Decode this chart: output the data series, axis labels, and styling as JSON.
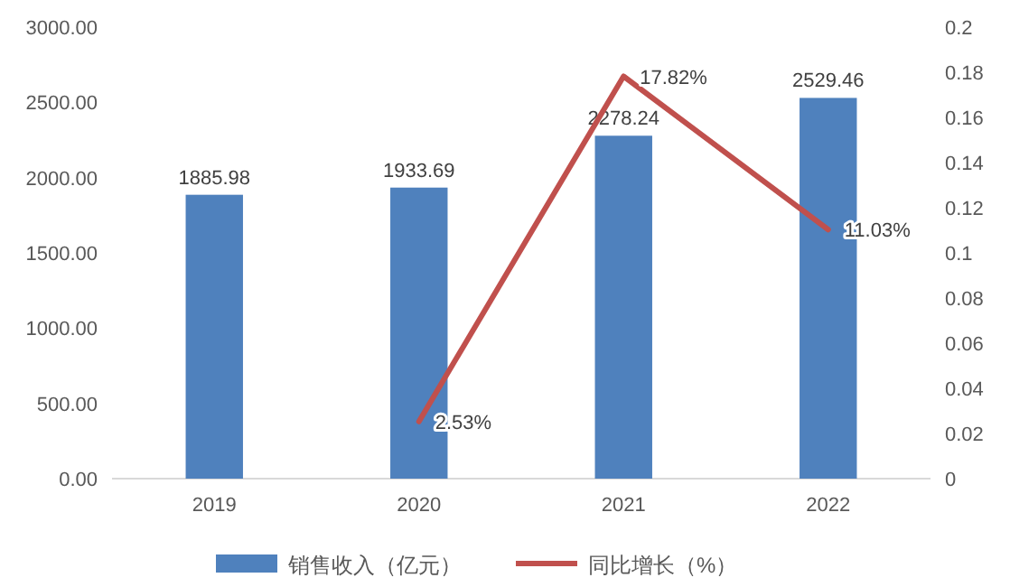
{
  "chart_data": {
    "type": "bar",
    "categories": [
      "2019",
      "2020",
      "2021",
      "2022"
    ],
    "series": [
      {
        "name": "销售收入（亿元）",
        "color": "#4f81bd",
        "values": [
          1885.98,
          1933.69,
          2278.24,
          2529.46
        ],
        "value_labels": [
          "1885.98",
          "1933.69",
          "2278.24",
          "2529.46"
        ]
      },
      {
        "name": "同比增长（%）",
        "type": "line",
        "axis": "y2",
        "color": "#c0504d",
        "values": [
          null,
          0.0253,
          0.1782,
          0.1103
        ],
        "value_labels": [
          null,
          "2.53%",
          "17.82%",
          "11.03%"
        ]
      }
    ],
    "ylim": [
      0,
      3000
    ],
    "yticks": [
      {
        "value": 0,
        "label": "0.00"
      },
      {
        "value": 500,
        "label": "500.00"
      },
      {
        "value": 1000,
        "label": "1000.00"
      },
      {
        "value": 1500,
        "label": "1500.00"
      },
      {
        "value": 2000,
        "label": "2000.00"
      },
      {
        "value": 2500,
        "label": "2500.00"
      },
      {
        "value": 3000,
        "label": "3000.00"
      }
    ],
    "y2lim": [
      0,
      0.2
    ],
    "y2ticks": [
      0,
      0.02,
      0.04,
      0.06,
      0.08,
      0.1,
      0.12,
      0.14,
      0.16,
      0.18,
      0.2
    ],
    "legend": "bottom"
  }
}
